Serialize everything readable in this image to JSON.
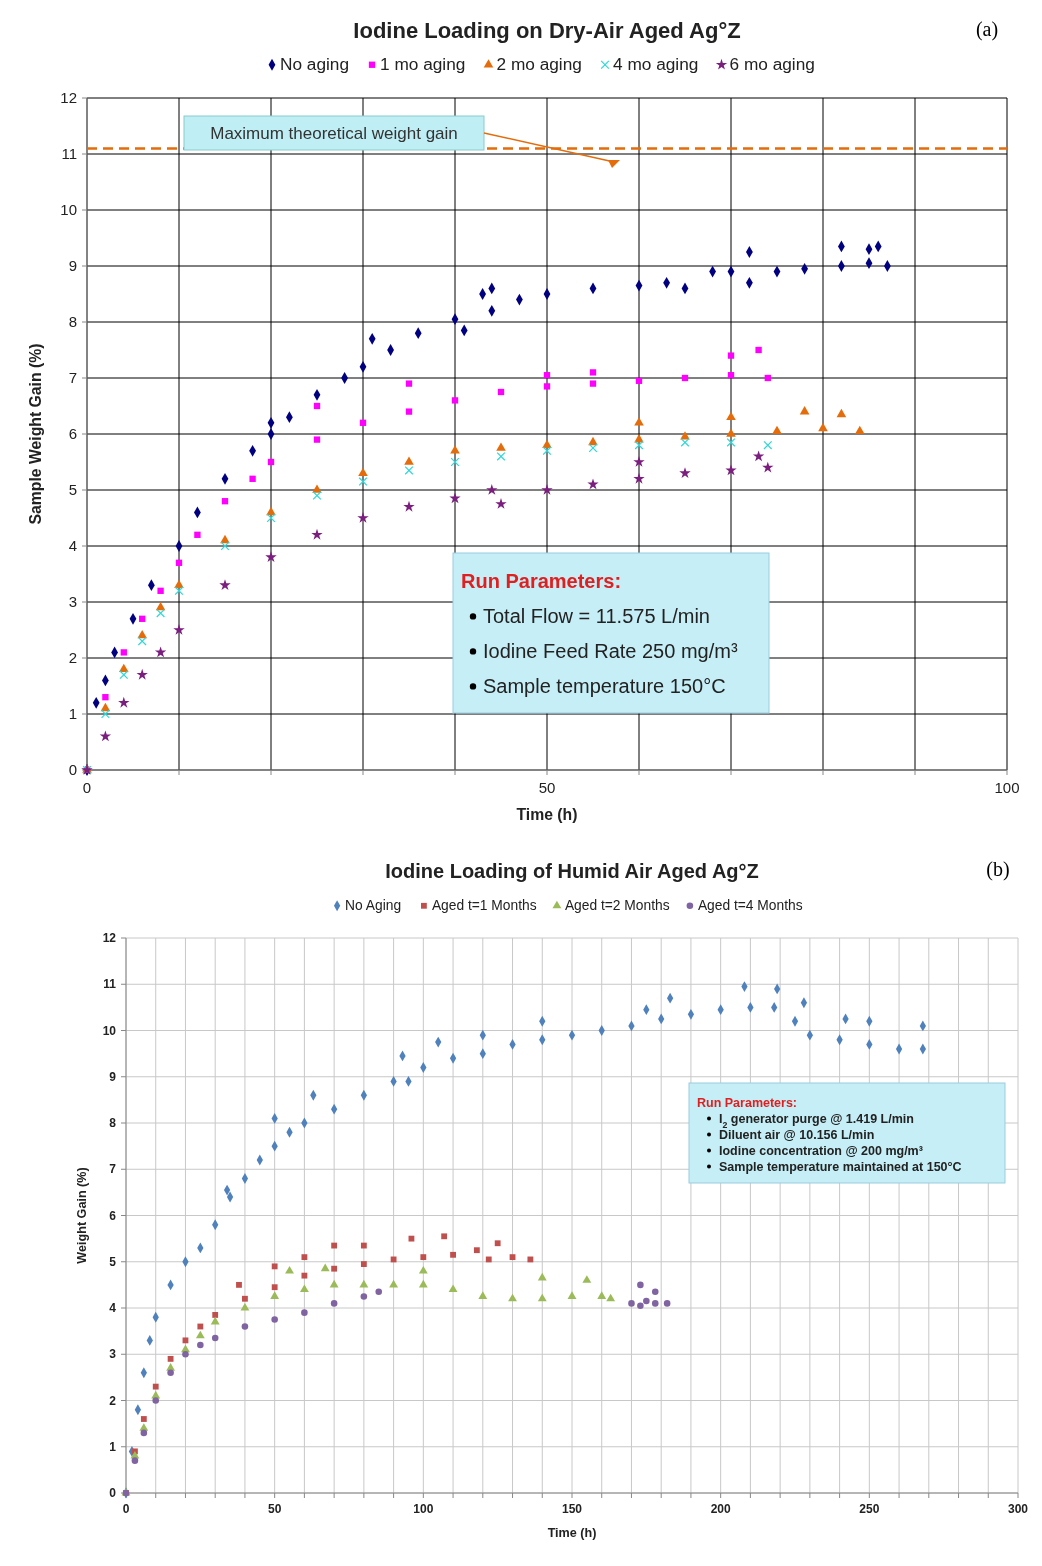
{
  "chart_data": [
    {
      "type": "scatter",
      "title": "Iodine Loading on Dry-Air Aged Ag°Z",
      "xlabel": "Time (h)",
      "ylabel": "Sample Weight Gain (%)",
      "legend": "top",
      "grid": true,
      "xlim": [
        0,
        100
      ],
      "xticks": [
        0,
        {
          "value": 10,
          "label": null
        },
        {
          "value": 20,
          "label": null
        },
        {
          "value": 30,
          "label": null
        },
        {
          "value": 40,
          "label": null
        },
        50,
        {
          "value": 60,
          "label": null
        },
        {
          "value": 70,
          "label": null
        },
        {
          "value": 80,
          "label": null
        },
        {
          "value": 90,
          "label": null
        },
        100
      ],
      "ylim": [
        0,
        12
      ],
      "yticks": [
        0,
        1,
        2,
        3,
        4,
        5,
        6,
        7,
        8,
        9,
        10,
        11,
        12
      ],
      "ref_lines": [
        {
          "axis": "y",
          "value": 11.1,
          "color": "#e46c0a",
          "line_style": "dashed"
        }
      ],
      "annotations": [
        "(a)",
        "Maximum theoretical weight gain",
        "Run Parameters:",
        "Total Flow = 11.575 L/min",
        "Iodine Feed Rate 250 mg/m³",
        "Sample temperature 150°C"
      ],
      "series": [
        {
          "name": "No aging",
          "color": "#000080",
          "marker": "diamond",
          "x": [
            0,
            1,
            2,
            3,
            5,
            7,
            10,
            12,
            15,
            18,
            20,
            22,
            25,
            28,
            30,
            33,
            36,
            40,
            41,
            44,
            47,
            50,
            55,
            60,
            63,
            65,
            68,
            70,
            72,
            75,
            78,
            82,
            85,
            87,
            20,
            31,
            43,
            44,
            72,
            82,
            85,
            86
          ],
          "values": [
            0,
            1.2,
            1.6,
            2.1,
            2.7,
            3.3,
            4.0,
            4.6,
            5.2,
            5.7,
            6.0,
            6.3,
            6.7,
            7.0,
            7.2,
            7.5,
            7.8,
            8.05,
            7.85,
            8.2,
            8.4,
            8.5,
            8.6,
            8.65,
            8.7,
            8.6,
            8.9,
            8.9,
            8.7,
            8.9,
            8.95,
            9.0,
            9.05,
            9.0,
            6.2,
            7.7,
            8.5,
            8.6,
            9.25,
            9.35,
            9.3,
            9.35
          ]
        },
        {
          "name": "1 mo aging",
          "color": "#ff00ff",
          "marker": "square",
          "x": [
            0,
            2,
            4,
            6,
            8,
            10,
            12,
            15,
            18,
            20,
            25,
            30,
            35,
            40,
            45,
            50,
            55,
            60,
            65,
            70,
            74,
            25,
            35,
            50,
            55,
            70,
            73
          ],
          "values": [
            0,
            1.3,
            2.1,
            2.7,
            3.2,
            3.7,
            4.2,
            4.8,
            5.2,
            5.5,
            5.9,
            6.2,
            6.4,
            6.6,
            6.75,
            6.85,
            6.9,
            6.95,
            7.0,
            7.05,
            7.0,
            6.5,
            6.9,
            7.05,
            7.1,
            7.4,
            7.5
          ]
        },
        {
          "name": "2 mo aging",
          "color": "#e46c0a",
          "marker": "triangle",
          "x": [
            0,
            2,
            4,
            6,
            8,
            10,
            15,
            20,
            25,
            30,
            35,
            40,
            45,
            50,
            55,
            60,
            65,
            70,
            75,
            80,
            84,
            60,
            70,
            78,
            82
          ],
          "values": [
            0,
            1.1,
            1.8,
            2.4,
            2.9,
            3.3,
            4.1,
            4.6,
            5.0,
            5.3,
            5.5,
            5.7,
            5.75,
            5.8,
            5.85,
            5.9,
            5.95,
            6.0,
            6.05,
            6.1,
            6.05,
            6.2,
            6.3,
            6.4,
            6.35
          ]
        },
        {
          "name": "4 mo aging",
          "color": "#2ed8d8",
          "marker": "cross",
          "x": [
            0,
            2,
            4,
            6,
            8,
            10,
            15,
            20,
            25,
            30,
            35,
            40,
            45,
            50,
            55,
            60,
            65,
            70,
            74
          ],
          "values": [
            0,
            1.0,
            1.7,
            2.3,
            2.8,
            3.2,
            4.0,
            4.5,
            4.9,
            5.15,
            5.35,
            5.5,
            5.6,
            5.7,
            5.75,
            5.8,
            5.85,
            5.85,
            5.8
          ]
        },
        {
          "name": "6 mo aging",
          "color": "#7b1f7f",
          "marker": "star",
          "x": [
            0,
            2,
            4,
            6,
            8,
            10,
            15,
            20,
            25,
            30,
            35,
            40,
            44,
            45,
            50,
            55,
            60,
            65,
            70,
            74,
            60,
            73
          ],
          "values": [
            0,
            0.6,
            1.2,
            1.7,
            2.1,
            2.5,
            3.3,
            3.8,
            4.2,
            4.5,
            4.7,
            4.85,
            5.0,
            4.75,
            5.0,
            5.1,
            5.2,
            5.3,
            5.35,
            5.4,
            5.5,
            5.6
          ]
        }
      ]
    },
    {
      "type": "scatter",
      "title": "Iodine Loading of Humid Air Aged Ag°Z",
      "xlabel": "Time (h)",
      "ylabel": "Weight Gain (%)",
      "legend": "top",
      "grid": true,
      "xlim": [
        0,
        300
      ],
      "xticks": [
        0,
        {
          "value": 10,
          "label": null
        },
        {
          "value": 20,
          "label": null
        },
        {
          "value": 30,
          "label": null
        },
        {
          "value": 40,
          "label": null
        },
        50,
        {
          "value": 60,
          "label": null
        },
        {
          "value": 70,
          "label": null
        },
        {
          "value": 80,
          "label": null
        },
        {
          "value": 90,
          "label": null
        },
        100,
        {
          "value": 110,
          "label": null
        },
        {
          "value": 120,
          "label": null
        },
        {
          "value": 130,
          "label": null
        },
        {
          "value": 140,
          "label": null
        },
        150,
        {
          "value": 160,
          "label": null
        },
        {
          "value": 170,
          "label": null
        },
        {
          "value": 180,
          "label": null
        },
        {
          "value": 190,
          "label": null
        },
        200,
        {
          "value": 210,
          "label": null
        },
        {
          "value": 220,
          "label": null
        },
        {
          "value": 230,
          "label": null
        },
        {
          "value": 240,
          "label": null
        },
        250,
        {
          "value": 260,
          "label": null
        },
        {
          "value": 270,
          "label": null
        },
        {
          "value": 280,
          "label": null
        },
        {
          "value": 290,
          "label": null
        },
        300
      ],
      "ylim": [
        0,
        12
      ],
      "yticks": [
        0,
        1,
        2,
        3,
        4,
        5,
        6,
        7,
        8,
        9,
        10,
        11,
        12
      ],
      "annotations": [
        "(b)",
        "Run Parameters:",
        "I$_{2}$ generator purge @ 1.419 L/min",
        "Diluent air @ 10.156 L/min",
        "Iodine concentration @ 200 mg/m³",
        "Sample temperature maintained at 150°C"
      ],
      "series": [
        {
          "name": "No Aging",
          "color": "#4f81bd",
          "marker": "diamond",
          "x": [
            0,
            2,
            4,
            6,
            8,
            10,
            15,
            20,
            25,
            30,
            35,
            40,
            45,
            50,
            55,
            60,
            70,
            80,
            90,
            95,
            100,
            110,
            120,
            130,
            140,
            150,
            160,
            170,
            180,
            190,
            200,
            210,
            218,
            225,
            230,
            240,
            250,
            260,
            268,
            34,
            50,
            63,
            93,
            105,
            120,
            140,
            175,
            183,
            208,
            219,
            228,
            242,
            250,
            268
          ],
          "values": [
            0,
            0.9,
            1.8,
            2.6,
            3.3,
            3.8,
            4.5,
            5.0,
            5.3,
            5.8,
            6.4,
            6.8,
            7.2,
            7.5,
            7.8,
            8.0,
            8.3,
            8.6,
            8.9,
            8.9,
            9.2,
            9.4,
            9.5,
            9.7,
            9.8,
            9.9,
            10.0,
            10.1,
            10.25,
            10.35,
            10.45,
            10.5,
            10.5,
            10.2,
            9.9,
            9.8,
            9.7,
            9.6,
            9.6,
            6.55,
            8.1,
            8.6,
            9.45,
            9.75,
            9.9,
            10.2,
            10.45,
            10.7,
            10.95,
            10.9,
            10.6,
            10.25,
            10.2,
            10.1
          ]
        },
        {
          "name": "Aged t=1 Months",
          "color": "#c0504d",
          "marker": "square",
          "x": [
            0,
            3,
            6,
            10,
            15,
            20,
            25,
            30,
            40,
            50,
            60,
            70,
            80,
            90,
            100,
            110,
            118,
            122,
            130,
            136,
            38,
            50,
            60,
            70,
            80,
            96,
            107,
            125
          ],
          "values": [
            0,
            0.9,
            1.6,
            2.3,
            2.9,
            3.3,
            3.6,
            3.85,
            4.2,
            4.45,
            4.7,
            4.85,
            4.95,
            5.05,
            5.1,
            5.15,
            5.25,
            5.05,
            5.1,
            5.05,
            4.5,
            4.9,
            5.1,
            5.35,
            5.35,
            5.5,
            5.55,
            5.4
          ]
        },
        {
          "name": "Aged t=2 Months",
          "color": "#9bbb59",
          "marker": "triangle",
          "x": [
            0,
            3,
            6,
            10,
            15,
            20,
            25,
            30,
            40,
            50,
            60,
            70,
            80,
            90,
            100,
            110,
            120,
            130,
            140,
            150,
            160,
            163,
            55,
            67,
            100,
            140,
            155
          ],
          "values": [
            0,
            0.8,
            1.4,
            2.1,
            2.7,
            3.1,
            3.4,
            3.7,
            4.0,
            4.25,
            4.4,
            4.5,
            4.5,
            4.5,
            4.5,
            4.4,
            4.25,
            4.2,
            4.2,
            4.25,
            4.25,
            4.2,
            4.8,
            4.85,
            4.8,
            4.65,
            4.6
          ]
        },
        {
          "name": "Aged t=4 Months",
          "color": "#8064a2",
          "marker": "circle",
          "x": [
            0,
            3,
            6,
            10,
            15,
            20,
            25,
            30,
            40,
            50,
            60,
            70,
            80,
            85,
            170,
            173,
            175,
            178,
            182,
            173,
            178
          ],
          "values": [
            0,
            0.7,
            1.3,
            2.0,
            2.6,
            3.0,
            3.2,
            3.35,
            3.6,
            3.75,
            3.9,
            4.1,
            4.25,
            4.35,
            4.1,
            4.05,
            4.15,
            4.1,
            4.1,
            4.5,
            4.35
          ]
        }
      ]
    }
  ]
}
